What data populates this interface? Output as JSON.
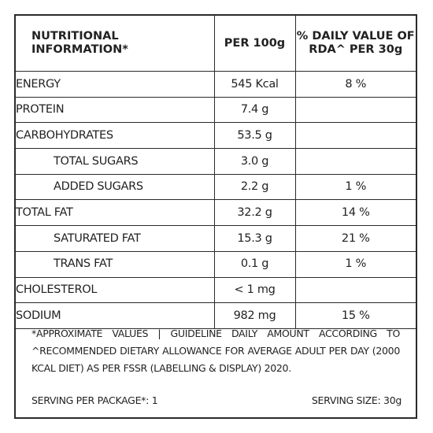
{
  "table": {
    "headers": [
      "NUTRITIONAL INFORMATION*",
      "PER 100g",
      "% DAILY VALUE OF RDA^ PER 30g"
    ],
    "rows": [
      {
        "name": "ENERGY",
        "per100": "545 Kcal",
        "dv": "8 %",
        "sub": false
      },
      {
        "name": "PROTEIN",
        "per100": "7.4 g",
        "dv": "",
        "sub": false
      },
      {
        "name": "CARBOHYDRATES",
        "per100": "53.5 g",
        "dv": "",
        "sub": false
      },
      {
        "name": "TOTAL SUGARS",
        "per100": "3.0 g",
        "dv": "",
        "sub": true
      },
      {
        "name": "ADDED SUGARS",
        "per100": "2.2 g",
        "dv": "1 %",
        "sub": true
      },
      {
        "name": "TOTAL FAT",
        "per100": "32.2 g",
        "dv": "14 %",
        "sub": false
      },
      {
        "name": "SATURATED FAT",
        "per100": "15.3 g",
        "dv": "21 %",
        "sub": true
      },
      {
        "name": "TRANS FAT",
        "per100": "0.1 g",
        "dv": "1 %",
        "sub": true
      },
      {
        "name": "CHOLESTEROL",
        "per100": "< 1 mg",
        "dv": "",
        "sub": false
      },
      {
        "name": "SODIUM",
        "per100": "982 mg",
        "dv": "15 %",
        "sub": false
      }
    ]
  },
  "footnote": "*APPROXIMATE VALUES | GUIDELINE DAILY AMOUNT ACCORDING TO ^RECOMMENDED DIETARY ALLOWANCE FOR AVERAGE ADULT PER DAY (2000 KCAL DIET) AS PER FSSR (LABELLING & DISPLAY) 2020.",
  "serving_per_package": "SERVING PER PACKAGE*: 1",
  "serving_size": "SERVING SIZE: 30g"
}
